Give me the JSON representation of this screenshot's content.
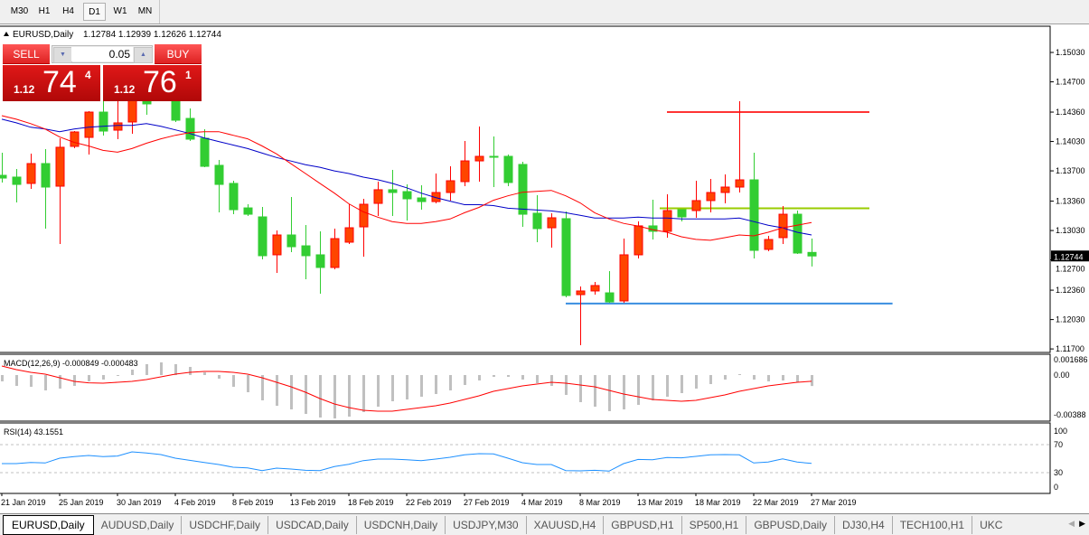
{
  "toolbar": {
    "timeframes": [
      {
        "label": "M30"
      },
      {
        "label": "H1"
      },
      {
        "label": "H4"
      },
      {
        "label": "D1",
        "active": true
      },
      {
        "label": "W1"
      },
      {
        "label": "MN"
      }
    ]
  },
  "header": {
    "symbol": "EURUSD,Daily",
    "ohlc": "1.12784 1.12939 1.12626 1.12744"
  },
  "trade_panel": {
    "sell_label": "SELL",
    "buy_label": "BUY",
    "lot": "0.05",
    "sell_price": {
      "prefix": "1.12",
      "big": "74",
      "sup": "4"
    },
    "buy_price": {
      "prefix": "1.12",
      "big": "76",
      "sup": "1"
    }
  },
  "colors": {
    "bull": "#ff4500",
    "bull_border": "#ff0000",
    "bear": "#32cd32",
    "ma_fast": "#ff0000",
    "ma_slow": "#0000c8",
    "macd_hist": "#c0c0c0",
    "macd_signal": "#ff0000",
    "rsi": "#1e90ff",
    "hline_red": "#ff3333",
    "hline_green": "#99cc00",
    "hline_blue": "#3a8ee0"
  },
  "chart_data": [
    {
      "type": "candlestick",
      "title": "EURUSD,Daily",
      "ylim": [
        1.117,
        1.1535
      ],
      "yticks": [
        "1.15030",
        "1.14700",
        "1.14360",
        "1.14030",
        "1.13700",
        "1.13360",
        "1.13030",
        "1.12700",
        "1.12360",
        "1.12030",
        "1.11700"
      ],
      "current_price": "1.12744",
      "x_labels": [
        "21 Jan 2019",
        "25 Jan 2019",
        "30 Jan 2019",
        "4 Feb 2019",
        "8 Feb 2019",
        "13 Feb 2019",
        "18 Feb 2019",
        "22 Feb 2019",
        "27 Feb 2019",
        "4 Mar 2019",
        "8 Mar 2019",
        "13 Mar 2019",
        "18 Mar 2019",
        "22 Mar 2019",
        "27 Mar 2019"
      ],
      "ohlc": [
        [
          1.1365,
          1.13904,
          1.13569,
          1.13619
        ],
        [
          1.1363,
          1.13721,
          1.13345,
          1.13548
        ],
        [
          1.13559,
          1.13894,
          1.13498,
          1.13782
        ],
        [
          1.13782,
          1.13944,
          1.13051,
          1.13518
        ],
        [
          1.13528,
          1.14066,
          1.12879,
          1.13965
        ],
        [
          1.13975,
          1.14147,
          1.13954,
          1.14137
        ],
        [
          1.14076,
          1.14371,
          1.13883,
          1.1436
        ],
        [
          1.1436,
          1.14502,
          1.14097,
          1.14147
        ],
        [
          1.14157,
          1.14553,
          1.14056,
          1.14239
        ],
        [
          1.14249,
          1.14604,
          1.14117,
          1.14523
        ],
        [
          1.14553,
          1.14655,
          1.1433,
          1.14452
        ],
        [
          1.14604,
          1.14706,
          1.14492,
          1.14523
        ],
        [
          1.14523,
          1.14604,
          1.14249,
          1.14269
        ],
        [
          1.14289,
          1.14401,
          1.14036,
          1.14056
        ],
        [
          1.14066,
          1.14168,
          1.13741,
          1.13751
        ],
        [
          1.13762,
          1.13822,
          1.13234,
          1.13548
        ],
        [
          1.13559,
          1.13589,
          1.13213,
          1.13264
        ],
        [
          1.13284,
          1.13325,
          1.13193,
          1.13213
        ],
        [
          1.13183,
          1.13295,
          1.12706,
          1.12747
        ],
        [
          1.12757,
          1.13031,
          1.12554,
          1.1298
        ],
        [
          1.1298,
          1.13406,
          1.12787,
          1.12848
        ],
        [
          1.12858,
          1.13092,
          1.12483,
          1.12747
        ],
        [
          1.12757,
          1.13021,
          1.1232,
          1.12615
        ],
        [
          1.12615,
          1.13051,
          1.12594,
          1.12939
        ],
        [
          1.12899,
          1.13325,
          1.12879,
          1.13061
        ],
        [
          1.13071,
          1.13386,
          1.12737,
          1.13325
        ],
        [
          1.13335,
          1.13579,
          1.13193,
          1.13488
        ],
        [
          1.13488,
          1.13711,
          1.13193,
          1.13457
        ],
        [
          1.13467,
          1.13548,
          1.13142,
          1.13386
        ],
        [
          1.13396,
          1.13538,
          1.13264,
          1.13355
        ],
        [
          1.13355,
          1.1367,
          1.13335,
          1.13457
        ],
        [
          1.13457,
          1.13751,
          1.13366,
          1.13589
        ],
        [
          1.13579,
          1.14036,
          1.13528,
          1.13812
        ],
        [
          1.13812,
          1.14198,
          1.13579,
          1.13863
        ],
        [
          1.13863,
          1.14086,
          1.13518,
          1.13853
        ],
        [
          1.13863,
          1.13883,
          1.13528,
          1.13569
        ],
        [
          1.13772,
          1.13802,
          1.13071,
          1.13213
        ],
        [
          1.13224,
          1.13427,
          1.12899,
          1.13051
        ],
        [
          1.13061,
          1.13224,
          1.12838,
          1.13173
        ],
        [
          1.13163,
          1.13244,
          1.1228,
          1.123
        ],
        [
          1.1231,
          1.12402,
          1.11742,
          1.12351
        ],
        [
          1.12351,
          1.12452,
          1.1231,
          1.12412
        ],
        [
          1.1233,
          1.12574,
          1.12217,
          1.12228
        ],
        [
          1.12239,
          1.12939,
          1.12217,
          1.12757
        ],
        [
          1.12757,
          1.13132,
          1.12716,
          1.13082
        ],
        [
          1.13082,
          1.13376,
          1.12929,
          1.13021
        ],
        [
          1.13021,
          1.13437,
          1.1295,
          1.13254
        ],
        [
          1.13264,
          1.13264,
          1.13132,
          1.13183
        ],
        [
          1.13254,
          1.13589,
          1.13173,
          1.13366
        ],
        [
          1.13366,
          1.13609,
          1.13234,
          1.13457
        ],
        [
          1.13457,
          1.1366,
          1.13335,
          1.13518
        ],
        [
          1.13518,
          1.14482,
          1.13457,
          1.13599
        ],
        [
          1.13599,
          1.13904,
          1.12716,
          1.12807
        ],
        [
          1.12818,
          1.1297,
          1.12797,
          1.12929
        ],
        [
          1.1295,
          1.13305,
          1.12879,
          1.13213
        ],
        [
          1.13213,
          1.13254,
          1.12767,
          1.12777
        ],
        [
          1.12784,
          1.12939,
          1.12626,
          1.12744
        ]
      ],
      "ma_fast": [
        1.1432,
        1.1428,
        1.1423,
        1.1417,
        1.1408,
        1.1402,
        1.1398,
        1.1393,
        1.1391,
        1.1395,
        1.1401,
        1.1406,
        1.141,
        1.1413,
        1.1414,
        1.1414,
        1.141,
        1.1406,
        1.1398,
        1.1389,
        1.1378,
        1.1367,
        1.1356,
        1.1345,
        1.1333,
        1.1324,
        1.1318,
        1.1313,
        1.1311,
        1.1311,
        1.1313,
        1.1316,
        1.1323,
        1.1329,
        1.1337,
        1.1342,
        1.1346,
        1.1347,
        1.1348,
        1.1342,
        1.1334,
        1.1323,
        1.1316,
        1.1311,
        1.1308,
        1.1304,
        1.1301,
        1.1296,
        1.1293,
        1.1292,
        1.1295,
        1.1298,
        1.1297,
        1.1301,
        1.1306,
        1.1309,
        1.1312
      ],
      "ma_slow": [
        1.1428,
        1.1424,
        1.1419,
        1.1417,
        1.1414,
        1.1417,
        1.1419,
        1.142,
        1.1421,
        1.1421,
        1.1423,
        1.142,
        1.1416,
        1.1412,
        1.1407,
        1.1403,
        1.1399,
        1.1395,
        1.139,
        1.1385,
        1.1381,
        1.1377,
        1.1374,
        1.137,
        1.1367,
        1.1363,
        1.136,
        1.1356,
        1.1351,
        1.1345,
        1.134,
        1.1336,
        1.1332,
        1.1332,
        1.1331,
        1.1328,
        1.1327,
        1.1326,
        1.1325,
        1.1323,
        1.132,
        1.1317,
        1.1317,
        1.1317,
        1.1318,
        1.1317,
        1.1317,
        1.1316,
        1.1316,
        1.1316,
        1.1316,
        1.1317,
        1.1313,
        1.1309,
        1.1306,
        1.1301,
        1.1298
      ],
      "hlines": [
        {
          "price": 1.1436,
          "from_bar": 46,
          "to_bar": 60,
          "color": "hline_red"
        },
        {
          "price": 1.1328,
          "from_bar": 45.5,
          "to_bar": 60,
          "color": "hline_green"
        },
        {
          "price": 1.1221,
          "from_bar": 39,
          "to_bar": 61.6,
          "color": "hline_blue"
        }
      ]
    },
    {
      "type": "bar+line",
      "title": "MACD(12,26,9) -0.000849 -0.000483",
      "yticks": [
        "0.001686",
        "0.00",
        "-0.00388"
      ],
      "histogram": [
        -0.00049,
        -0.00084,
        -0.00091,
        -0.00119,
        -0.00105,
        -0.00084,
        -0.00049,
        -0.00035,
        -7e-05,
        0.00042,
        0.00084,
        0.00098,
        0.00084,
        0.00063,
        0.00021,
        -0.00028,
        -0.00091,
        -0.00133,
        -0.00196,
        -0.00238,
        -0.00266,
        -0.00301,
        -0.00329,
        -0.00336,
        -0.00322,
        -0.00287,
        -0.00245,
        -0.00203,
        -0.00189,
        -0.00168,
        -0.00147,
        -0.00119,
        -0.00077,
        -0.00042,
        -0.00014,
        -0.00014,
        -0.00035,
        -0.00063,
        -0.00084,
        -0.00154,
        -0.0021,
        -0.00245,
        -0.0028,
        -0.00266,
        -0.00231,
        -0.00196,
        -0.00168,
        -0.0014,
        -0.00105,
        -0.0007,
        -0.00035,
        7e-05,
        -0.00035,
        -0.00049,
        -0.00042,
        -0.00056,
        -0.000849
      ],
      "signal": [
        0.0007,
        0.00042,
        0.00021,
        7e-05,
        -0.00021,
        -0.00049,
        -0.0006,
        -0.00063,
        -0.00056,
        -0.00049,
        -0.00035,
        -0.00014,
        7e-05,
        0.00021,
        0.00028,
        0.00028,
        0.00021,
        7e-05,
        -0.00021,
        -0.00056,
        -0.00091,
        -0.00133,
        -0.00182,
        -0.00224,
        -0.00252,
        -0.00273,
        -0.0028,
        -0.0028,
        -0.00266,
        -0.00252,
        -0.00238,
        -0.00217,
        -0.00189,
        -0.00161,
        -0.00126,
        -0.00105,
        -0.00084,
        -0.0007,
        -0.00056,
        -0.00063,
        -0.00077,
        -0.00091,
        -0.00119,
        -0.00147,
        -0.00168,
        -0.00189,
        -0.00196,
        -0.00203,
        -0.00196,
        -0.00175,
        -0.00154,
        -0.00126,
        -0.00105,
        -0.00084,
        -0.0007,
        -0.00056,
        -0.000483
      ]
    },
    {
      "type": "line",
      "title": "RSI(14) 43.1551",
      "ylim": [
        0,
        100
      ],
      "levels": [
        70,
        30
      ],
      "yticks": [
        "100",
        "70",
        "30",
        "0"
      ],
      "values": [
        42.9,
        42.9,
        44.6,
        43.8,
        50.6,
        52.8,
        54.5,
        52.8,
        53.7,
        59.7,
        58.0,
        55.8,
        50.6,
        47.6,
        44.6,
        41.6,
        37.7,
        36.9,
        33.0,
        36.5,
        35.2,
        33.4,
        33.0,
        38.6,
        42.0,
        47.2,
        49.4,
        49.4,
        48.5,
        47.2,
        49.4,
        51.9,
        55.4,
        57.1,
        56.7,
        50.6,
        44.2,
        41.6,
        41.6,
        33.0,
        32.6,
        33.4,
        32.2,
        42.9,
        48.9,
        48.5,
        51.5,
        51.1,
        53.2,
        55.4,
        55.8,
        55.4,
        43.8,
        45.1,
        49.8,
        45.1,
        43.2
      ]
    }
  ],
  "tabs": [
    {
      "label": "EURUSD,Daily",
      "active": true
    },
    {
      "label": "AUDUSD,Daily"
    },
    {
      "label": "USDCHF,Daily"
    },
    {
      "label": "USDCAD,Daily"
    },
    {
      "label": "USDCNH,Daily"
    },
    {
      "label": "USDJPY,M30"
    },
    {
      "label": "XAUUSD,H4"
    },
    {
      "label": "GBPUSD,H1"
    },
    {
      "label": "SP500,H1"
    },
    {
      "label": "GBPUSD,Daily"
    },
    {
      "label": "DJ30,H4"
    },
    {
      "label": "TECH100,H1"
    },
    {
      "label": "UKC"
    }
  ]
}
